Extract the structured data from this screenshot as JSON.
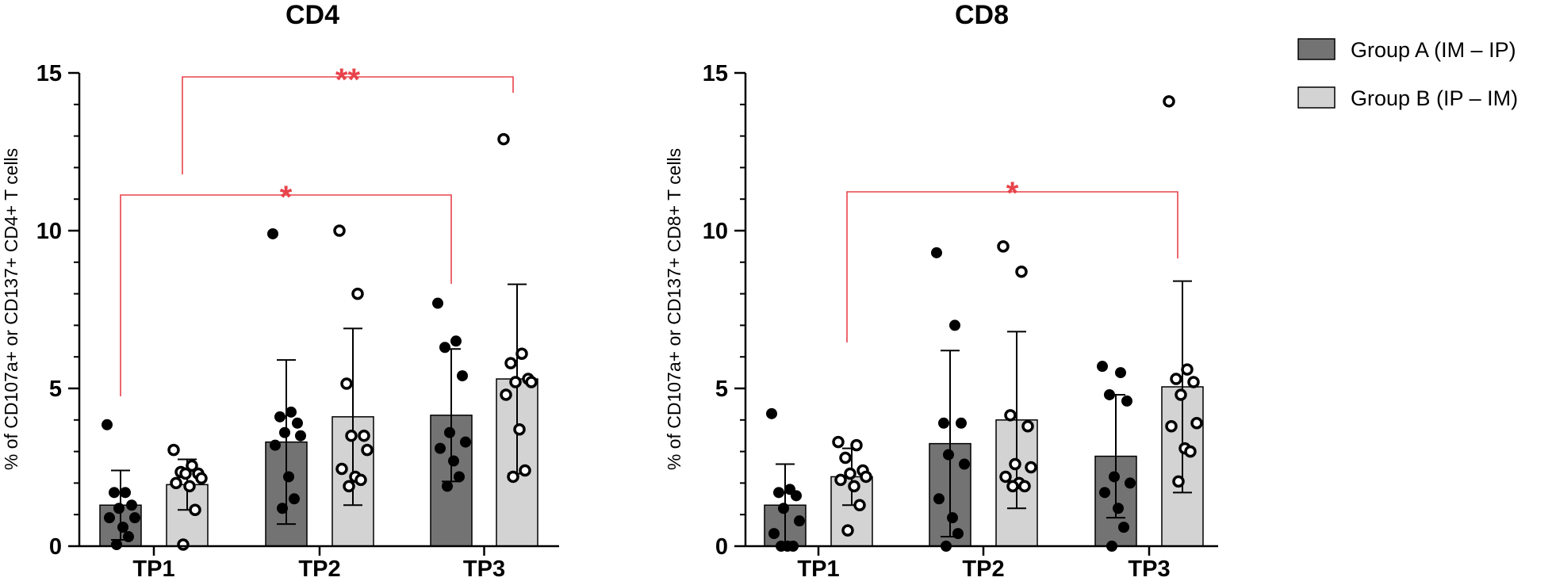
{
  "colors": {
    "groupA": "#737373",
    "groupB": "#d3d3d3",
    "sig": "#e8434b",
    "axis": "#000000"
  },
  "legend": [
    {
      "label": "Group A (IM – IP)",
      "color": "#737373"
    },
    {
      "label": "Group B (IP – IM)",
      "color": "#d3d3d3"
    }
  ],
  "chart_data": [
    {
      "type": "bar",
      "title": "CD4",
      "ylabel": "% of CD107a+ or CD137+ CD4+ T cells",
      "xlabel": "",
      "ylim": [
        0,
        15
      ],
      "yticks": [
        "0",
        "5",
        "10",
        "15"
      ],
      "categories": [
        "TP1",
        "TP2",
        "TP3"
      ],
      "series": [
        {
          "name": "Group A (IM – IP)",
          "values": [
            1.3,
            3.3,
            4.15
          ],
          "sd": [
            1.1,
            2.6,
            2.1
          ],
          "points": [
            [
              3.85,
              1.7,
              1.7,
              1.3,
              1.2,
              0.9,
              0.9,
              0.6,
              0.3,
              0.05
            ],
            [
              9.9,
              4.25,
              4.1,
              3.9,
              3.6,
              3.5,
              3.2,
              2.2,
              1.5,
              1.2
            ],
            [
              7.7,
              6.5,
              6.3,
              5.4,
              3.6,
              3.3,
              3.1,
              2.7,
              2.2,
              1.9
            ]
          ]
        },
        {
          "name": "Group B (IP – IM)",
          "values": [
            1.95,
            4.1,
            5.3
          ],
          "sd": [
            0.8,
            2.8,
            3.0
          ],
          "points": [
            [
              3.05,
              2.55,
              2.35,
              2.3,
              2.3,
              2.15,
              2.0,
              1.9,
              1.15,
              0.05
            ],
            [
              10.0,
              8.0,
              5.15,
              3.5,
              3.5,
              3.05,
              2.45,
              2.2,
              2.1,
              1.9
            ],
            [
              12.9,
              6.1,
              5.8,
              5.3,
              5.2,
              5.2,
              4.8,
              3.7,
              2.4,
              2.2
            ]
          ]
        }
      ],
      "significance": [
        {
          "from": "TP1",
          "to": "TP3",
          "label": "*"
        },
        {
          "from": "TP1",
          "to": "TP3",
          "label": "**"
        }
      ]
    },
    {
      "type": "bar",
      "title": "CD8",
      "ylabel": "% of CD107a+ or CD137+ CD8+ T cells",
      "xlabel": "",
      "ylim": [
        0,
        15
      ],
      "yticks": [
        "0",
        "5",
        "10",
        "15"
      ],
      "categories": [
        "TP1",
        "TP2",
        "TP3"
      ],
      "series": [
        {
          "name": "Group A (IM – IP)",
          "values": [
            1.3,
            3.25,
            2.85
          ],
          "sd": [
            1.3,
            2.95,
            1.95
          ],
          "points": [
            [
              4.2,
              1.8,
              1.7,
              1.6,
              1.2,
              0.8,
              0.4,
              0.0,
              0.0,
              0.0
            ],
            [
              9.3,
              7.0,
              3.9,
              3.9,
              2.9,
              2.6,
              1.5,
              0.9,
              0.4,
              0.0
            ],
            [
              5.7,
              5.5,
              4.8,
              4.6,
              2.2,
              2.0,
              1.7,
              1.2,
              0.6,
              0.0
            ]
          ]
        },
        {
          "name": "Group B (IP – IM)",
          "values": [
            2.2,
            4.0,
            5.05
          ],
          "sd": [
            0.9,
            2.8,
            3.35
          ],
          "points": [
            [
              3.3,
              3.2,
              2.8,
              2.4,
              2.3,
              2.2,
              2.1,
              1.9,
              1.3,
              0.5
            ],
            [
              9.5,
              8.7,
              4.15,
              3.8,
              2.6,
              2.5,
              2.2,
              2.0,
              1.9,
              1.9
            ],
            [
              14.1,
              5.6,
              5.3,
              5.2,
              4.8,
              3.9,
              3.8,
              3.1,
              3.0,
              2.05
            ]
          ]
        }
      ],
      "significance": [
        {
          "from": "TP1",
          "to": "TP3",
          "label": "*"
        }
      ]
    }
  ]
}
